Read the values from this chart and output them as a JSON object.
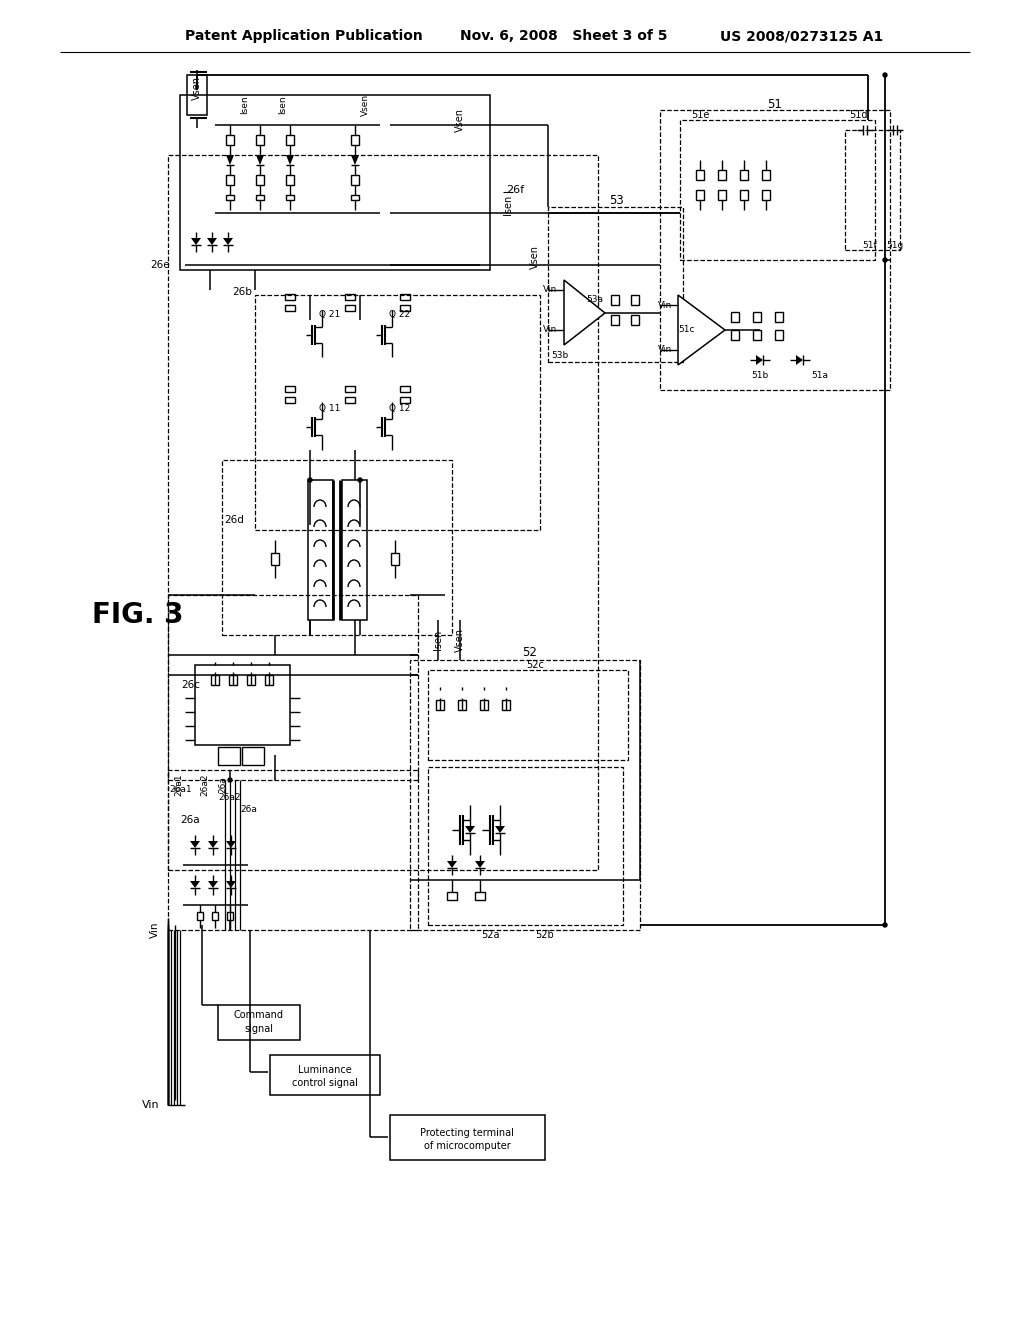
{
  "bg_color": "#ffffff",
  "title_left": "Patent Application Publication",
  "title_center": "Nov. 6, 2008   Sheet 3 of 5",
  "title_right": "US 2008/0273125 A1",
  "fig_label": "FIG. 3",
  "title_fontsize": 10.5,
  "fig_label_fontsize": 20
}
